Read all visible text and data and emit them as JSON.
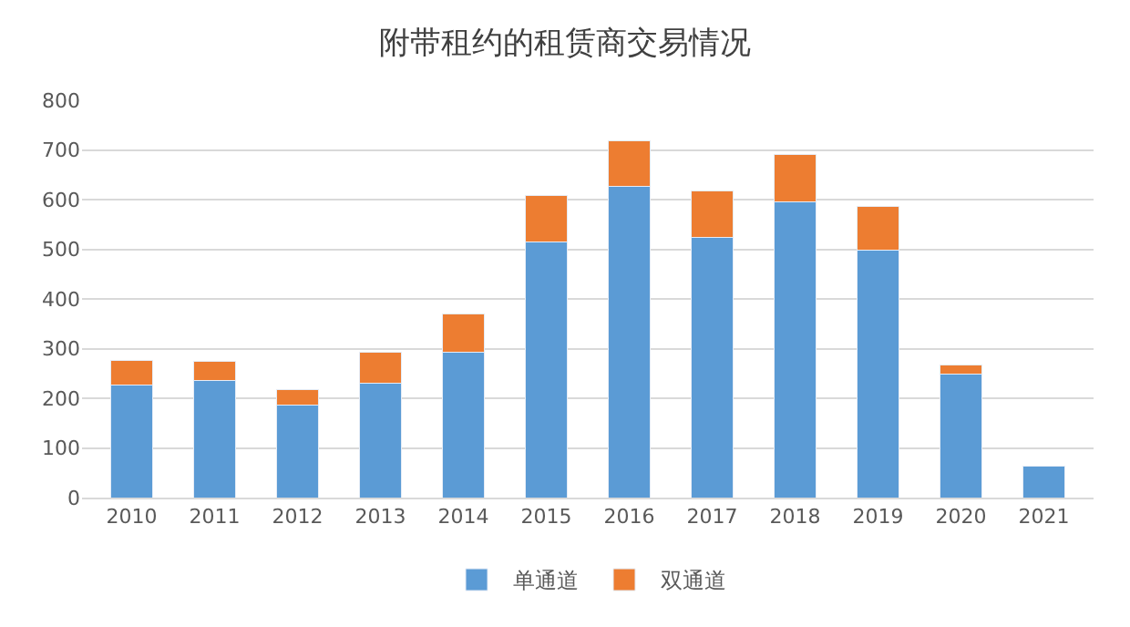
{
  "chart_data": {
    "type": "bar",
    "title": "附带租约的租赁商交易情况",
    "stacked": true,
    "categories": [
      "2010",
      "2011",
      "2012",
      "2013",
      "2014",
      "2015",
      "2016",
      "2017",
      "2018",
      "2019",
      "2020",
      "2021"
    ],
    "series": [
      {
        "name": "单通道",
        "color": "#5b9bd5",
        "values": [
          227,
          236,
          187,
          231,
          293,
          514,
          627,
          523,
          595,
          498,
          249,
          63
        ]
      },
      {
        "name": "双通道",
        "color": "#ed7d31",
        "values": [
          50,
          38,
          30,
          61,
          76,
          94,
          92,
          94,
          95,
          88,
          18,
          null
        ]
      }
    ],
    "ylim": [
      0,
      800
    ],
    "yticks": [
      0,
      100,
      200,
      300,
      400,
      500,
      600,
      700,
      800
    ],
    "grid": "y",
    "legend": "bottom"
  }
}
